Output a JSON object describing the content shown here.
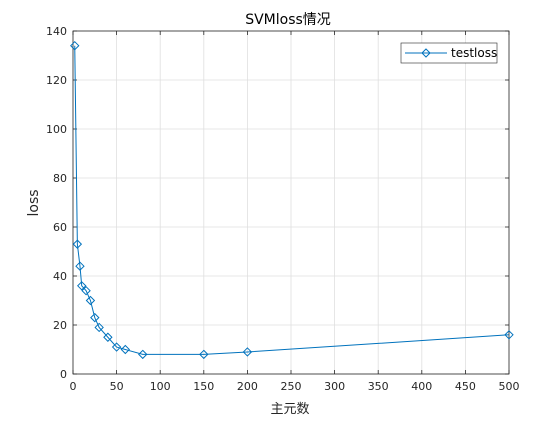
{
  "chart_data": {
    "type": "line",
    "title": "SVMloss情况",
    "xlabel": "主元数",
    "ylabel": "loss",
    "xlim": [
      0,
      500
    ],
    "ylim": [
      0,
      140
    ],
    "xticks": [
      0,
      50,
      100,
      150,
      200,
      250,
      300,
      350,
      400,
      450,
      500
    ],
    "yticks": [
      0,
      20,
      40,
      60,
      80,
      100,
      120,
      140
    ],
    "grid": true,
    "legend_position": "top-right",
    "series": [
      {
        "name": "testloss",
        "color": "#0072BD",
        "marker": "diamond",
        "x": [
          2,
          5,
          8,
          10,
          15,
          20,
          25,
          30,
          40,
          50,
          60,
          80,
          150,
          200,
          500
        ],
        "y": [
          134,
          53,
          44,
          36,
          34,
          30,
          23,
          19,
          15,
          11,
          10,
          8,
          8,
          9,
          16
        ]
      }
    ]
  }
}
